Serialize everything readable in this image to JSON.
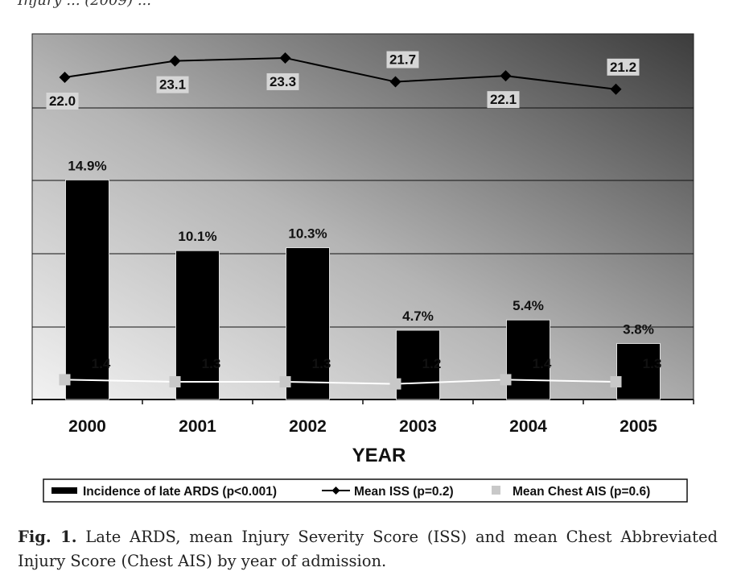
{
  "chart_data": {
    "type": "bar",
    "categories": [
      "2000",
      "2001",
      "2002",
      "2003",
      "2004",
      "2005"
    ],
    "xlabel": "YEAR",
    "ylabel": "",
    "grid": true,
    "legend_placement": "bottom",
    "series": [
      {
        "name": "Incidence of late ARDS (p<0.001)",
        "kind": "bar",
        "values": [
          14.9,
          10.1,
          10.3,
          4.7,
          5.4,
          3.8
        ],
        "labels": [
          "14.9%",
          "10.1%",
          "10.3%",
          "4.7%",
          "5.4%",
          "3.8%"
        ],
        "color": "#000000"
      },
      {
        "name": "Mean ISS (p=0.2)",
        "kind": "line",
        "values": [
          22.0,
          23.1,
          23.3,
          21.7,
          22.1,
          21.2
        ],
        "labels": [
          "22.0",
          "23.1",
          "23.3",
          "21.7",
          "22.1",
          "21.2"
        ],
        "color": "#000000"
      },
      {
        "name": "Mean Chest AIS (p=0.6)",
        "kind": "line",
        "values": [
          1.4,
          1.3,
          1.3,
          1.2,
          1.4,
          1.3
        ],
        "labels": [
          "1.4",
          "1.3",
          "1.3",
          "1.2",
          "1.4",
          "1.3"
        ],
        "color": "#c8c8c8"
      }
    ]
  },
  "caption": {
    "label": "Fig. 1.",
    "text": " Late ARDS, mean Injury Severity Score (ISS) and mean Chest Abbreviated Injury Score (Chest AIS) by year of admission."
  },
  "page_fragment": "Injury ... (2009) ..."
}
